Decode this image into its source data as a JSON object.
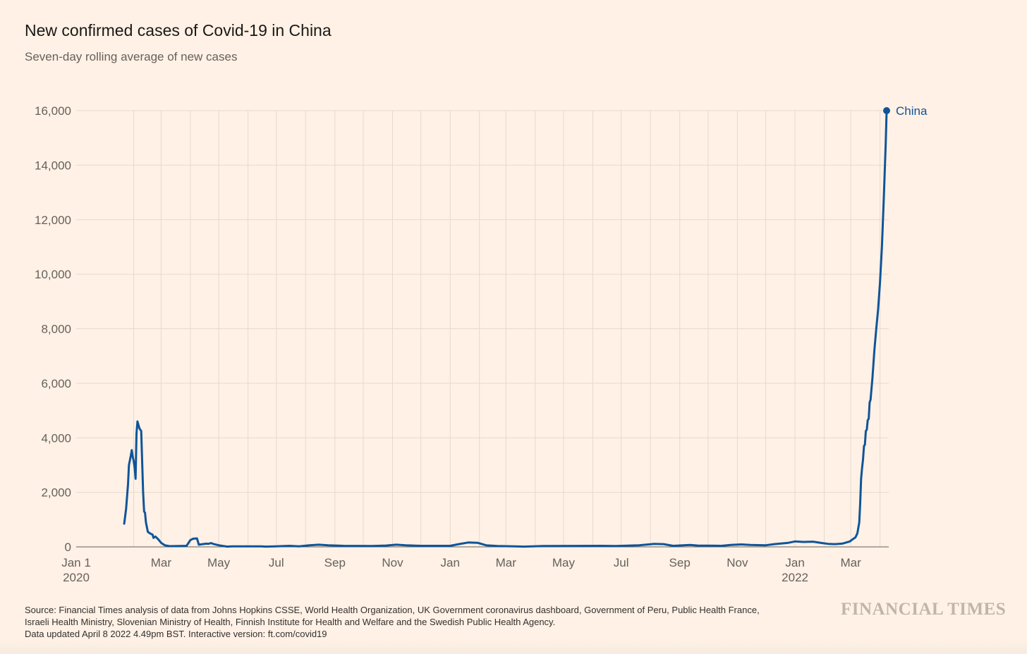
{
  "header": {
    "title": "New confirmed cases of Covid-19 in China",
    "subtitle": "Seven-day rolling average of new cases"
  },
  "footer": {
    "source_line1": "Source: Financial Times analysis of data from Johns Hopkins CSSE, World Health Organization, UK Government coronavirus dashboard, Government of Peru, Public Health France,",
    "source_line2": "Israeli Health Ministry, Slovenian Ministry of Health, Finnish Institute for Health and Welfare and the Swedish Public Health Agency.",
    "updated": "Data updated April 8 2022 4.49pm BST. Interactive version: ft.com/covid19",
    "brand": "FINANCIAL TIMES"
  },
  "colors": {
    "background": "#fff1e5",
    "series": "#0f5499",
    "grid": "#e6d9ce",
    "axis_text": "#66605c"
  },
  "chart_data": {
    "type": "line",
    "title": "New confirmed cases of Covid-19 in China",
    "subtitle": "Seven-day rolling average of new cases",
    "xlabel": "",
    "ylabel": "",
    "ylim": [
      0,
      16000
    ],
    "xlim": [
      "2020-01-01",
      "2022-04-08"
    ],
    "grid": "vertical monthly lines and horizontal lines at each y tick",
    "y_ticks": [
      0,
      2000,
      4000,
      6000,
      8000,
      10000,
      12000,
      14000,
      16000
    ],
    "y_tick_labels": [
      "0",
      "2,000",
      "4,000",
      "6,000",
      "8,000",
      "10,000",
      "12,000",
      "14,000",
      "16,000"
    ],
    "x_ticks": [
      {
        "date": "2020-01-01",
        "label": "Jan 1",
        "sublabel": "2020"
      },
      {
        "date": "2020-03-01",
        "label": "Mar",
        "sublabel": ""
      },
      {
        "date": "2020-05-01",
        "label": "May",
        "sublabel": ""
      },
      {
        "date": "2020-07-01",
        "label": "Jul",
        "sublabel": ""
      },
      {
        "date": "2020-09-01",
        "label": "Sep",
        "sublabel": ""
      },
      {
        "date": "2020-11-01",
        "label": "Nov",
        "sublabel": ""
      },
      {
        "date": "2021-01-01",
        "label": "Jan",
        "sublabel": ""
      },
      {
        "date": "2021-03-01",
        "label": "Mar",
        "sublabel": ""
      },
      {
        "date": "2021-05-01",
        "label": "May",
        "sublabel": ""
      },
      {
        "date": "2021-07-01",
        "label": "Jul",
        "sublabel": ""
      },
      {
        "date": "2021-09-01",
        "label": "Sep",
        "sublabel": ""
      },
      {
        "date": "2021-11-01",
        "label": "Nov",
        "sublabel": ""
      },
      {
        "date": "2022-01-01",
        "label": "Jan",
        "sublabel": "2022"
      },
      {
        "date": "2022-03-01",
        "label": "Mar",
        "sublabel": ""
      }
    ],
    "series": [
      {
        "name": "China",
        "color": "#0f5499",
        "end_label": true,
        "points": [
          [
            "2020-01-22",
            850
          ],
          [
            "2020-01-24",
            1400
          ],
          [
            "2020-01-26",
            2300
          ],
          [
            "2020-01-27",
            3000
          ],
          [
            "2020-01-29",
            3350
          ],
          [
            "2020-01-30",
            3550
          ],
          [
            "2020-01-31",
            3300
          ],
          [
            "2020-02-01",
            3150
          ],
          [
            "2020-02-02",
            2900
          ],
          [
            "2020-02-03",
            2500
          ],
          [
            "2020-02-04",
            4150
          ],
          [
            "2020-02-05",
            4600
          ],
          [
            "2020-02-07",
            4350
          ],
          [
            "2020-02-09",
            4250
          ],
          [
            "2020-02-11",
            2000
          ],
          [
            "2020-02-12",
            1300
          ],
          [
            "2020-02-13",
            1250
          ],
          [
            "2020-02-14",
            900
          ],
          [
            "2020-02-16",
            550
          ],
          [
            "2020-02-19",
            480
          ],
          [
            "2020-02-21",
            450
          ],
          [
            "2020-02-22",
            330
          ],
          [
            "2020-02-24",
            380
          ],
          [
            "2020-02-27",
            280
          ],
          [
            "2020-03-01",
            150
          ],
          [
            "2020-03-05",
            60
          ],
          [
            "2020-03-10",
            25
          ],
          [
            "2020-03-20",
            30
          ],
          [
            "2020-03-28",
            40
          ],
          [
            "2020-04-01",
            250
          ],
          [
            "2020-04-04",
            300
          ],
          [
            "2020-04-08",
            310
          ],
          [
            "2020-04-10",
            80
          ],
          [
            "2020-04-14",
            100
          ],
          [
            "2020-04-18",
            120
          ],
          [
            "2020-04-20",
            110
          ],
          [
            "2020-04-23",
            140
          ],
          [
            "2020-04-26",
            100
          ],
          [
            "2020-05-01",
            60
          ],
          [
            "2020-05-10",
            10
          ],
          [
            "2020-05-15",
            20
          ],
          [
            "2020-06-15",
            20
          ],
          [
            "2020-06-20",
            10
          ],
          [
            "2020-06-30",
            20
          ],
          [
            "2020-07-15",
            40
          ],
          [
            "2020-07-25",
            20
          ],
          [
            "2020-08-05",
            60
          ],
          [
            "2020-08-15",
            80
          ],
          [
            "2020-08-25",
            60
          ],
          [
            "2020-09-10",
            40
          ],
          [
            "2020-10-10",
            30
          ],
          [
            "2020-10-25",
            50
          ],
          [
            "2020-11-05",
            80
          ],
          [
            "2020-11-15",
            60
          ],
          [
            "2020-12-01",
            40
          ],
          [
            "2021-01-01",
            40
          ],
          [
            "2021-01-10",
            100
          ],
          [
            "2021-01-20",
            160
          ],
          [
            "2021-01-30",
            150
          ],
          [
            "2021-02-08",
            60
          ],
          [
            "2021-02-20",
            30
          ],
          [
            "2021-03-10",
            20
          ],
          [
            "2021-03-20",
            10
          ],
          [
            "2021-04-10",
            30
          ],
          [
            "2021-06-10",
            40
          ],
          [
            "2021-06-25",
            30
          ],
          [
            "2021-07-20",
            60
          ],
          [
            "2021-08-05",
            110
          ],
          [
            "2021-08-15",
            100
          ],
          [
            "2021-08-25",
            40
          ],
          [
            "2021-09-12",
            70
          ],
          [
            "2021-09-20",
            50
          ],
          [
            "2021-10-15",
            40
          ],
          [
            "2021-10-25",
            70
          ],
          [
            "2021-11-05",
            90
          ],
          [
            "2021-11-15",
            70
          ],
          [
            "2021-12-01",
            60
          ],
          [
            "2021-12-10",
            100
          ],
          [
            "2021-12-25",
            150
          ],
          [
            "2022-01-01",
            200
          ],
          [
            "2022-01-10",
            180
          ],
          [
            "2022-01-20",
            190
          ],
          [
            "2022-01-30",
            140
          ],
          [
            "2022-02-05",
            110
          ],
          [
            "2022-02-12",
            100
          ],
          [
            "2022-02-20",
            120
          ],
          [
            "2022-02-28",
            200
          ],
          [
            "2022-03-03",
            280
          ],
          [
            "2022-03-06",
            350
          ],
          [
            "2022-03-08",
            500
          ],
          [
            "2022-03-10",
            900
          ],
          [
            "2022-03-11",
            1600
          ],
          [
            "2022-03-12",
            2500
          ],
          [
            "2022-03-13",
            2900
          ],
          [
            "2022-03-14",
            3200
          ],
          [
            "2022-03-15",
            3700
          ],
          [
            "2022-03-16",
            3750
          ],
          [
            "2022-03-17",
            4250
          ],
          [
            "2022-03-18",
            4300
          ],
          [
            "2022-03-19",
            4650
          ],
          [
            "2022-03-20",
            4700
          ],
          [
            "2022-03-21",
            5300
          ],
          [
            "2022-03-22",
            5400
          ],
          [
            "2022-03-24",
            6200
          ],
          [
            "2022-03-26",
            7200
          ],
          [
            "2022-03-28",
            8000
          ],
          [
            "2022-03-30",
            8700
          ],
          [
            "2022-04-01",
            9700
          ],
          [
            "2022-04-03",
            11000
          ],
          [
            "2022-04-05",
            12800
          ],
          [
            "2022-04-07",
            14800
          ],
          [
            "2022-04-08",
            16000
          ]
        ]
      }
    ]
  }
}
